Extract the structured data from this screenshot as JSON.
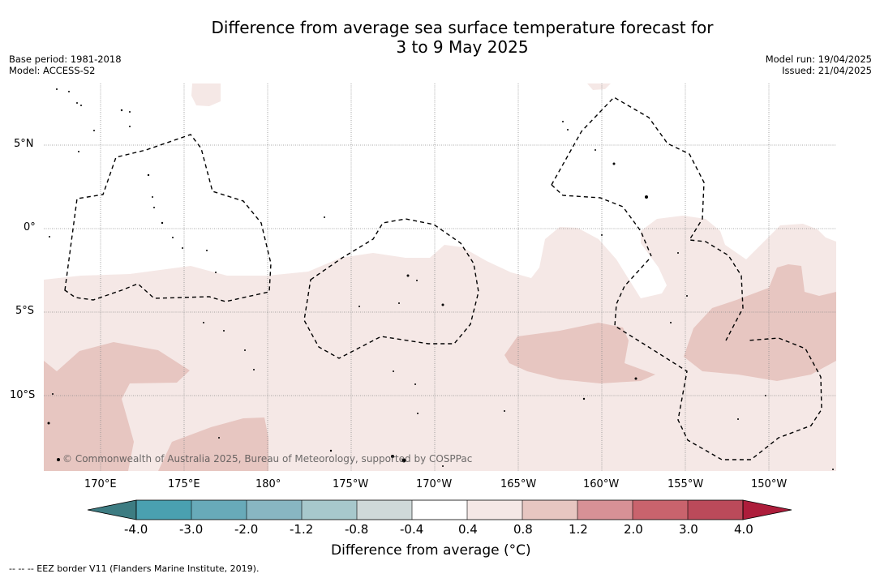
{
  "title": {
    "line1": "Difference from average sea surface temperature forecast for",
    "line2": "3 to 9 May 2025"
  },
  "meta_left": {
    "base_period": "Base period: 1981-2018",
    "model": "Model: ACCESS-S2"
  },
  "meta_right": {
    "model_run": "Model run: 19/04/2025",
    "issued": "Issued: 21/04/2025"
  },
  "map": {
    "copyright": "© Commonwealth of Australia 2025, Bureau of Meteorology, supported by COSPPac",
    "lat_labels": [
      "5°N",
      "0°",
      "5°S",
      "10°S"
    ],
    "lon_labels": [
      "170°E",
      "175°E",
      "180°",
      "175°W",
      "170°W",
      "165°W",
      "160°W",
      "155°W",
      "150°W"
    ],
    "colors": {
      "anom_0_4_0_8": "#f5e8e6",
      "anom_0_8_1_2": "#e7c6c1",
      "grid": "#9a9a9a",
      "eez_border": "#000000"
    }
  },
  "colorbar": {
    "title": "Difference from average (°C)",
    "tick_labels": [
      "-4.0",
      "-3.0",
      "-2.0",
      "-1.2",
      "-0.8",
      "-0.4",
      "0.4",
      "0.8",
      "1.2",
      "2.0",
      "3.0",
      "4.0"
    ],
    "colors": {
      "below_min": "#3d7c82",
      "bins": [
        "#4aa0b0",
        "#68aab9",
        "#88b6c2",
        "#a7c8cc",
        "#cfd9d9",
        "#ffffff",
        "#f5e8e6",
        "#e7c6c1",
        "#d79196",
        "#c9636d",
        "#bb4a5a"
      ],
      "above_max": "#ad1d3b"
    }
  },
  "footnote": "--  --  -- EEZ border V11 (Flanders Marine Institute, 2019)."
}
